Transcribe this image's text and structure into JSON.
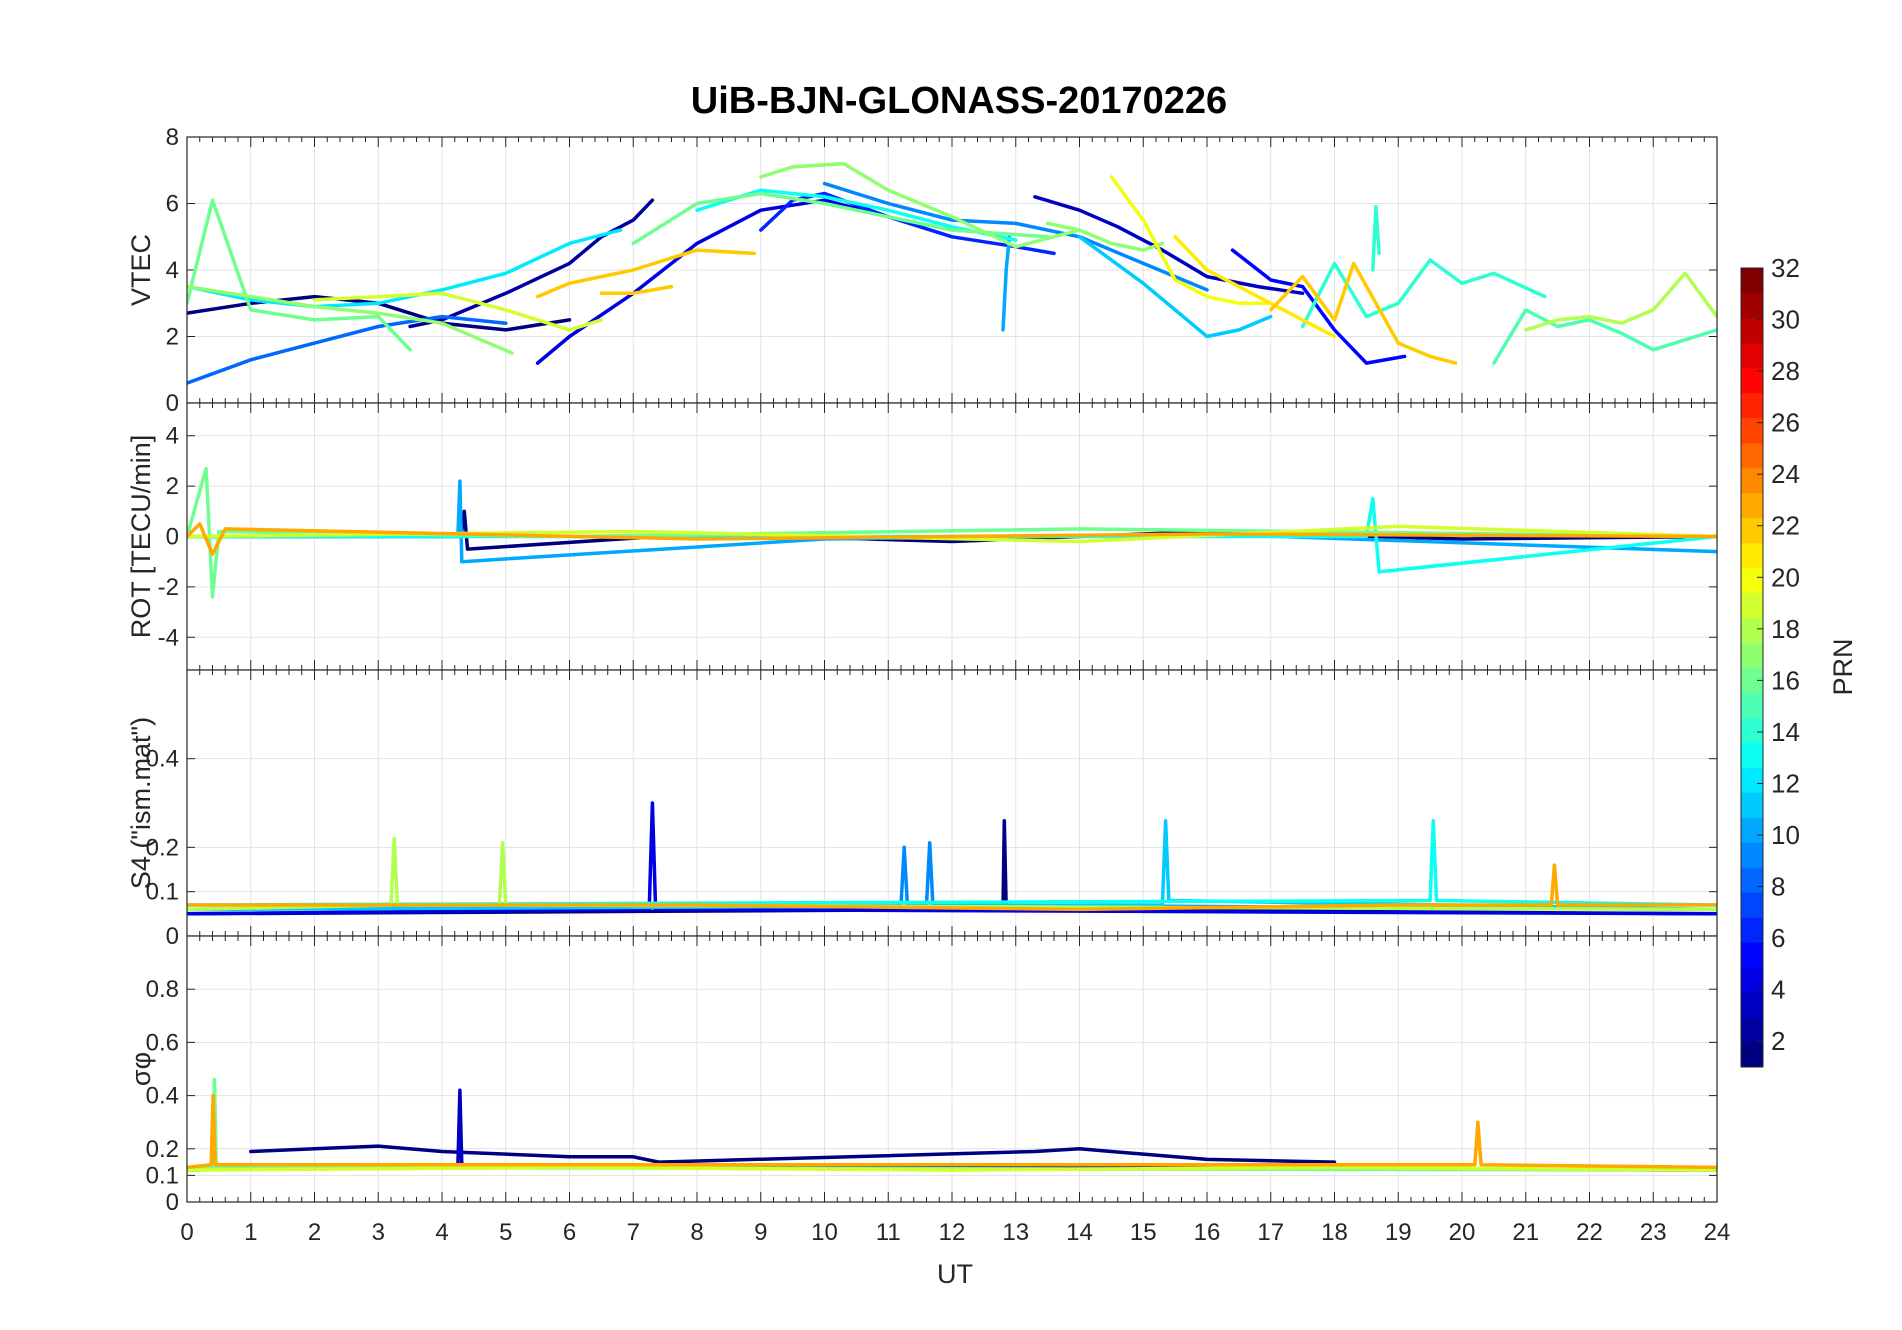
{
  "chart_data": {
    "type": "line",
    "title": "UiB-BJN-GLONASS-20170226",
    "xlabel": "UT",
    "xlim": [
      0,
      24
    ],
    "xticks": [
      "0",
      "1",
      "2",
      "3",
      "4",
      "5",
      "6",
      "7",
      "8",
      "9",
      "10",
      "11",
      "12",
      "13",
      "14",
      "15",
      "16",
      "17",
      "18",
      "19",
      "20",
      "21",
      "22",
      "23",
      "24"
    ],
    "grid": true,
    "colorbar": {
      "label": "PRN",
      "range": [
        1,
        32
      ],
      "ticks": [
        "2",
        "4",
        "6",
        "8",
        "10",
        "12",
        "14",
        "16",
        "18",
        "20",
        "22",
        "24",
        "26",
        "28",
        "30",
        "32"
      ],
      "colormap": "jet"
    },
    "panels": [
      {
        "key": "vtec",
        "ylabel": "VTEC",
        "ylim": [
          0,
          8
        ],
        "yticks": [
          0,
          2,
          4,
          6,
          8
        ],
        "ytick_labels": [
          "0",
          "2",
          "4",
          "6",
          "8"
        ],
        "series": [
          {
            "prn": 1,
            "x": [
              0,
              1,
              2,
              3,
              4,
              5,
              6
            ],
            "y": [
              2.7,
              3.0,
              3.2,
              3.0,
              2.4,
              2.2,
              2.5
            ]
          },
          {
            "prn": 2,
            "x": [
              3.5,
              4,
              5,
              6,
              6.5,
              7,
              7.3
            ],
            "y": [
              2.3,
              2.5,
              3.3,
              4.2,
              5.0,
              5.5,
              6.1
            ]
          },
          {
            "prn": 3,
            "x": [
              13.3,
              14,
              14.6,
              15.3,
              16,
              16.8,
              17.5
            ],
            "y": [
              6.2,
              5.8,
              5.3,
              4.6,
              3.8,
              3.5,
              3.3
            ]
          },
          {
            "prn": 4,
            "x": [
              5.5,
              6,
              7,
              8,
              9,
              10,
              11
            ],
            "y": [
              1.2,
              2.0,
              3.3,
              4.8,
              5.8,
              6.1,
              5.6
            ]
          },
          {
            "prn": 5,
            "x": [
              16.4,
              17,
              17.5,
              18,
              18.5,
              19.1
            ],
            "y": [
              4.6,
              3.7,
              3.5,
              2.2,
              1.2,
              1.4
            ]
          },
          {
            "prn": 6,
            "x": [
              9,
              9.5,
              10,
              11,
              12,
              13,
              13.6
            ],
            "y": [
              5.2,
              6.1,
              6.3,
              5.6,
              5.0,
              4.7,
              4.5
            ]
          },
          {
            "prn": 8,
            "x": [
              0,
              1,
              2,
              3,
              4,
              5
            ],
            "y": [
              0.6,
              1.3,
              1.8,
              2.3,
              2.6,
              2.4
            ]
          },
          {
            "prn": 9,
            "x": [
              10,
              11,
              12,
              13,
              14,
              15,
              16
            ],
            "y": [
              6.6,
              6.0,
              5.5,
              5.4,
              5.0,
              4.2,
              3.4
            ]
          },
          {
            "prn": 10,
            "x": [
              12.8,
              12.85,
              12.9
            ],
            "y": [
              2.2,
              4.0,
              5.0
            ]
          },
          {
            "prn": 11,
            "x": [
              14,
              15,
              15.5,
              16,
              16.5,
              17
            ],
            "y": [
              5.0,
              3.6,
              2.8,
              2.0,
              2.2,
              2.6
            ]
          },
          {
            "prn": 12,
            "x": [
              0,
              1,
              2,
              3,
              4,
              5,
              6,
              6.8
            ],
            "y": [
              3.5,
              3.1,
              2.9,
              3.0,
              3.4,
              3.9,
              4.8,
              5.2
            ]
          },
          {
            "prn": 13,
            "x": [
              8,
              9,
              10,
              11,
              12,
              13
            ],
            "y": [
              5.8,
              6.4,
              6.2,
              5.8,
              5.3,
              4.9
            ]
          },
          {
            "prn": 14,
            "x": [
              17.5,
              18,
              18.5,
              19,
              19.5,
              20,
              20.5,
              21.3
            ],
            "y": [
              2.3,
              4.2,
              2.6,
              3.0,
              4.3,
              3.6,
              3.9,
              3.2
            ]
          },
          {
            "prn": 14,
            "x": [
              18.6,
              18.65,
              18.7
            ],
            "y": [
              4.0,
              5.9,
              4.5
            ]
          },
          {
            "prn": 15,
            "x": [
              20.5,
              21,
              21.5,
              22,
              22.5,
              23,
              23.5,
              24
            ],
            "y": [
              1.2,
              2.8,
              2.3,
              2.5,
              2.1,
              1.6,
              1.9,
              2.2
            ]
          },
          {
            "prn": 16,
            "x": [
              0,
              0.4,
              1,
              2,
              3,
              3.5
            ],
            "y": [
              3.0,
              6.1,
              2.8,
              2.5,
              2.6,
              1.6
            ]
          },
          {
            "prn": 16,
            "x": [
              7,
              8,
              9,
              10,
              11,
              12,
              13.5
            ],
            "y": [
              4.8,
              6.0,
              6.3,
              6.0,
              5.6,
              5.2,
              5.0
            ]
          },
          {
            "prn": 17,
            "x": [
              9,
              9.5,
              10.3,
              11,
              12,
              13,
              14
            ],
            "y": [
              6.8,
              7.1,
              7.2,
              6.4,
              5.6,
              4.7,
              5.2
            ]
          },
          {
            "prn": 17,
            "x": [
              0,
              1,
              2,
              3,
              4,
              5.1
            ],
            "y": [
              3.5,
              3.2,
              2.9,
              2.7,
              2.4,
              1.5
            ]
          },
          {
            "prn": 17,
            "x": [
              13.5,
              14,
              14.5,
              15,
              15.3
            ],
            "y": [
              5.4,
              5.2,
              4.8,
              4.6,
              4.8
            ]
          },
          {
            "prn": 18,
            "x": [
              21,
              21.5,
              22,
              22.5,
              23,
              23.5,
              24
            ],
            "y": [
              2.2,
              2.5,
              2.6,
              2.4,
              2.8,
              3.9,
              2.6
            ]
          },
          {
            "prn": 19,
            "x": [
              2,
              3,
              4,
              5,
              6,
              6.5
            ],
            "y": [
              3.1,
              3.2,
              3.3,
              2.8,
              2.2,
              2.5
            ]
          },
          {
            "prn": 20,
            "x": [
              14.5,
              15,
              15.5,
              16,
              16.5,
              17
            ],
            "y": [
              6.8,
              5.5,
              3.7,
              3.2,
              3.0,
              3.0
            ]
          },
          {
            "prn": 21,
            "x": [
              15.5,
              16,
              16.5,
              17,
              17.5,
              18
            ],
            "y": [
              5.0,
              4.0,
              3.5,
              3.0,
              2.5,
              2.0
            ]
          },
          {
            "prn": 22,
            "x": [
              5.5,
              6,
              6.5,
              7,
              7.5,
              8,
              8.9
            ],
            "y": [
              3.2,
              3.6,
              3.8,
              4.0,
              4.3,
              4.6,
              4.5
            ]
          },
          {
            "prn": 22,
            "x": [
              6.5,
              7,
              7.6
            ],
            "y": [
              3.3,
              3.3,
              3.5
            ]
          },
          {
            "prn": 22,
            "x": [
              17,
              17.5,
              18,
              18.3,
              19,
              19.5,
              19.9
            ],
            "y": [
              2.8,
              3.8,
              2.5,
              4.2,
              1.8,
              1.4,
              1.2
            ]
          }
        ]
      },
      {
        "key": "rot",
        "ylabel": "ROT [TECU/min]",
        "ylim": [
          -5.3,
          5.3
        ],
        "yticks": [
          -4,
          -2,
          0,
          2,
          4
        ],
        "ytick_labels": [
          "-4",
          "-2",
          "0",
          "2",
          "4"
        ],
        "series": [
          {
            "prn": 1,
            "x": [
              0,
              4.3,
              4.35,
              4.4,
              8,
              12,
              16,
              20,
              24
            ],
            "y": [
              0,
              0,
              1.0,
              -0.5,
              0.1,
              -0.2,
              0.2,
              -0.1,
              0
            ]
          },
          {
            "prn": 10,
            "x": [
              0,
              4.25,
              4.28,
              4.31,
              10,
              16,
              24
            ],
            "y": [
              0,
              0,
              2.2,
              -1.0,
              -0.1,
              0.1,
              -0.6
            ]
          },
          {
            "prn": 13,
            "x": [
              0,
              18.5,
              18.6,
              18.7,
              24
            ],
            "y": [
              0,
              0,
              1.5,
              -1.4,
              0
            ]
          },
          {
            "prn": 16,
            "x": [
              0,
              0.3,
              0.4,
              0.5,
              6,
              14,
              24
            ],
            "y": [
              0,
              2.7,
              -2.4,
              0.2,
              0,
              0.3,
              0
            ]
          },
          {
            "prn": 19,
            "x": [
              0,
              7,
              14,
              19,
              24
            ],
            "y": [
              0,
              0.2,
              -0.2,
              0.4,
              0
            ]
          },
          {
            "prn": 23,
            "x": [
              0,
              0.2,
              0.4,
              0.6,
              8,
              16,
              24
            ],
            "y": [
              0,
              0.5,
              -0.7,
              0.3,
              -0.1,
              0.1,
              0
            ]
          }
        ]
      },
      {
        "key": "s4",
        "ylabel": "S4 (\"ism.mat\")",
        "ylim": [
          0,
          0.6
        ],
        "yticks": [
          0,
          0.1,
          0.2,
          0.4
        ],
        "ytick_labels": [
          "0",
          "0.1",
          "0.2",
          "0.4"
        ],
        "series": [
          {
            "prn": 1,
            "x": [
              0,
              12.8,
              12.82,
              12.85,
              24
            ],
            "y": [
              0.05,
              0.06,
              0.26,
              0.06,
              0.05
            ]
          },
          {
            "prn": 4,
            "x": [
              0,
              7.25,
              7.3,
              7.35,
              24
            ],
            "y": [
              0.05,
              0.06,
              0.3,
              0.06,
              0.05
            ]
          },
          {
            "prn": 9,
            "x": [
              0,
              11.2,
              11.25,
              11.3,
              11.6,
              11.65,
              11.7,
              24
            ],
            "y": [
              0.06,
              0.07,
              0.2,
              0.07,
              0.07,
              0.21,
              0.07,
              0.06
            ]
          },
          {
            "prn": 11,
            "x": [
              0,
              15.3,
              15.35,
              15.4,
              24
            ],
            "y": [
              0.06,
              0.07,
              0.26,
              0.08,
              0.06
            ]
          },
          {
            "prn": 13,
            "x": [
              0,
              19.5,
              19.55,
              19.6,
              24
            ],
            "y": [
              0.07,
              0.08,
              0.26,
              0.08,
              0.07
            ]
          },
          {
            "prn": 18,
            "x": [
              0,
              3.2,
              3.25,
              3.3,
              4.9,
              4.95,
              5.0,
              24
            ],
            "y": [
              0.06,
              0.07,
              0.22,
              0.07,
              0.07,
              0.21,
              0.07,
              0.06
            ]
          },
          {
            "prn": 23,
            "x": [
              0,
              8,
              14,
              19,
              21.4,
              21.45,
              21.5,
              24
            ],
            "y": [
              0.07,
              0.07,
              0.06,
              0.07,
              0.07,
              0.16,
              0.07,
              0.07
            ]
          }
        ]
      },
      {
        "key": "sigma_phi",
        "ylabel": "σφ",
        "ylim": [
          0,
          1
        ],
        "yticks": [
          0,
          0.1,
          0.2,
          0.4,
          0.6,
          0.8
        ],
        "ytick_labels": [
          "0",
          "0.1",
          "0.2",
          "0.4",
          "0.6",
          "0.8"
        ],
        "series": [
          {
            "prn": 1,
            "x": [
              1,
              2,
              3,
              4,
              5,
              6,
              7,
              7.4,
              13.3,
              14,
              14.5,
              15,
              16,
              18
            ],
            "y": [
              0.19,
              0.2,
              0.21,
              0.19,
              0.18,
              0.17,
              0.17,
              0.15,
              0.19,
              0.2,
              0.19,
              0.18,
              0.16,
              0.15
            ]
          },
          {
            "prn": 3,
            "x": [
              0,
              4.25,
              4.28,
              4.31,
              24
            ],
            "y": [
              0.12,
              0.14,
              0.42,
              0.14,
              0.12
            ]
          },
          {
            "prn": 16,
            "x": [
              0,
              0.4,
              0.43,
              0.46,
              24
            ],
            "y": [
              0.12,
              0.13,
              0.46,
              0.13,
              0.12
            ]
          },
          {
            "prn": 19,
            "x": [
              0,
              6,
              12,
              18,
              24
            ],
            "y": [
              0.12,
              0.13,
              0.12,
              0.13,
              0.12
            ]
          },
          {
            "prn": 23,
            "x": [
              0,
              0.38,
              0.41,
              0.44,
              20.2,
              20.25,
              20.3,
              24
            ],
            "y": [
              0.13,
              0.14,
              0.4,
              0.14,
              0.14,
              0.3,
              0.14,
              0.13
            ]
          }
        ]
      }
    ]
  }
}
